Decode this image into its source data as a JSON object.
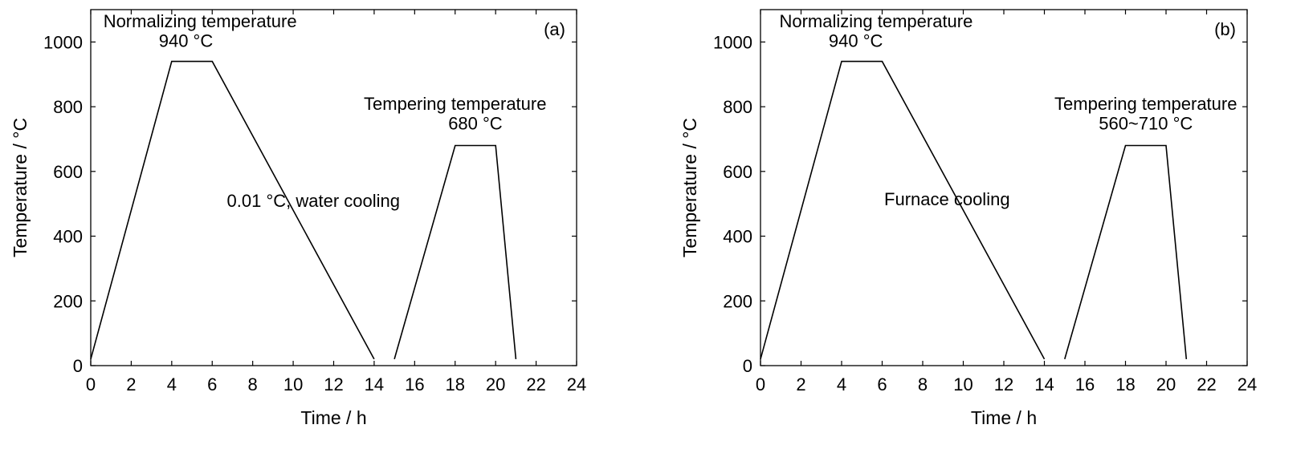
{
  "chart_data": [
    {
      "type": "line",
      "panel_label": "(a)",
      "xlabel": "Time / h",
      "ylabel": "Temperature / °C",
      "xlim": [
        0,
        24
      ],
      "ylim": [
        0,
        1100
      ],
      "xticks": [
        0,
        2,
        4,
        6,
        8,
        10,
        12,
        14,
        16,
        18,
        20,
        22,
        24
      ],
      "yticks": [
        0,
        200,
        400,
        600,
        800,
        1000
      ],
      "grid": false,
      "segments": [
        {
          "x": [
            0,
            4,
            6,
            14
          ],
          "y": [
            20,
            940,
            940,
            20
          ]
        },
        {
          "x": [
            15,
            18,
            20,
            21
          ],
          "y": [
            20,
            680,
            680,
            20
          ]
        }
      ],
      "annotations": [
        {
          "text": "Normalizing temperature",
          "x": 5.4,
          "y": 1045
        },
        {
          "text": "940 °C",
          "x": 4.7,
          "y": 985
        },
        {
          "text": "Tempering temperature",
          "x": 18.0,
          "y": 790
        },
        {
          "text": "680 °C",
          "x": 19.0,
          "y": 730
        },
        {
          "text": "0.01 °C, water cooling",
          "x": 11.0,
          "y": 490
        }
      ]
    },
    {
      "type": "line",
      "panel_label": "(b)",
      "xlabel": "Time / h",
      "ylabel": "Temperature / °C",
      "xlim": [
        0,
        24
      ],
      "ylim": [
        0,
        1100
      ],
      "xticks": [
        0,
        2,
        4,
        6,
        8,
        10,
        12,
        14,
        16,
        18,
        20,
        22,
        24
      ],
      "yticks": [
        0,
        200,
        400,
        600,
        800,
        1000
      ],
      "grid": false,
      "segments": [
        {
          "x": [
            0,
            4,
            6,
            14
          ],
          "y": [
            20,
            940,
            940,
            20
          ]
        },
        {
          "x": [
            15,
            18,
            20,
            21
          ],
          "y": [
            20,
            680,
            680,
            20
          ]
        }
      ],
      "annotations": [
        {
          "text": "Normalizing temperature",
          "x": 5.7,
          "y": 1045
        },
        {
          "text": "940 °C",
          "x": 4.7,
          "y": 985
        },
        {
          "text": "Tempering temperature",
          "x": 19.0,
          "y": 790
        },
        {
          "text": "560~710 °C",
          "x": 19.0,
          "y": 730
        },
        {
          "text": "Furnace cooling",
          "x": 9.2,
          "y": 495
        }
      ]
    }
  ]
}
